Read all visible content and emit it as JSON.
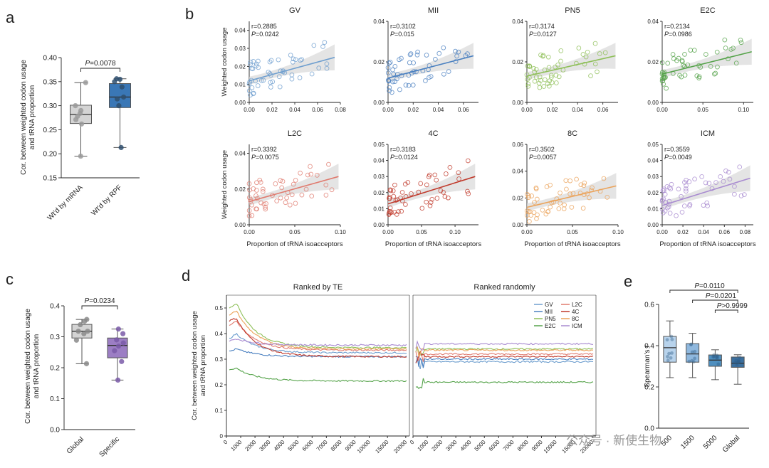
{
  "figure": {
    "panel_labels": [
      "a",
      "b",
      "c",
      "d",
      "e"
    ],
    "watermark": "公众号 · 新使生物"
  },
  "colors": {
    "GV": "#6f9fcf",
    "MII": "#4a80c0",
    "PN5": "#8ebf58",
    "E2C": "#55a34a",
    "L2C": "#e07a6e",
    "4C": "#c0392b",
    "8C": "#eba35a",
    "ICM": "#a88ad0",
    "mrna_box": "#d4d4d4",
    "rpf_box": "#3a77b6",
    "global_box": "#d4d4d4",
    "specific_box": "#9c7ec4"
  },
  "chart_data": [
    {
      "id": "a",
      "type": "box",
      "ylabel": "Cor. between weighted codon usage and tRNA proportion",
      "ylim": [
        0.15,
        0.4
      ],
      "yticks": [
        "0.15",
        "0.20",
        "0.25",
        "0.30",
        "0.35",
        "0.40"
      ],
      "categories": [
        "Wt'd by mRNA",
        "Wt'd by RPF"
      ],
      "boxes": [
        {
          "min": 0.195,
          "q1": 0.263,
          "median": 0.282,
          "q3": 0.301,
          "max": 0.348,
          "points": [
            0.195,
            0.262,
            0.271,
            0.278,
            0.284,
            0.29,
            0.3,
            0.348
          ]
        },
        {
          "min": 0.213,
          "q1": 0.296,
          "median": 0.318,
          "q3": 0.346,
          "max": 0.356,
          "points": [
            0.213,
            0.3,
            0.314,
            0.318,
            0.339,
            0.35,
            0.355,
            0.356
          ]
        }
      ],
      "annotation": "P=0.0078"
    },
    {
      "id": "b",
      "type": "scatter",
      "ylabel": "Weighted codon usage",
      "xlabel": "Proportion of tRNA isoacceptors",
      "subplots": [
        {
          "title": "GV",
          "r": "r=0.2885",
          "p": "P=0.0242",
          "color": "GV",
          "xlim": [
            0,
            0.08
          ],
          "ylim": [
            0,
            0.045
          ],
          "xticks": [
            "0.00",
            "0.02",
            "0.04",
            "0.06",
            "0.08"
          ],
          "yticks": [
            "0.00",
            "0.01",
            "0.02",
            "0.03",
            "0.04"
          ],
          "line": [
            0.0,
            0.012,
            0.075,
            0.025
          ]
        },
        {
          "title": "MII",
          "r": "r=0.3102",
          "p": "P=0.015",
          "color": "MII",
          "xlim": [
            0,
            0.072
          ],
          "ylim": [
            0,
            0.04
          ],
          "xticks": [
            "0.00",
            "0.02",
            "0.04",
            "0.06"
          ],
          "yticks": [
            "0.00",
            "0.02",
            "0.04"
          ],
          "line": [
            0.0,
            0.012,
            0.068,
            0.023
          ]
        },
        {
          "title": "PN5",
          "r": "r=0.3174",
          "p": "P=0.0127",
          "color": "PN5",
          "xlim": [
            0,
            0.072
          ],
          "ylim": [
            0,
            0.04
          ],
          "xticks": [
            "0.00",
            "0.02",
            "0.04",
            "0.06"
          ],
          "yticks": [
            "0.00",
            "0.02",
            "0.04"
          ],
          "line": [
            0.0,
            0.013,
            0.07,
            0.023
          ]
        },
        {
          "title": "E2C",
          "r": "r=0.2134",
          "p": "P=0.0986",
          "color": "E2C",
          "xlim": [
            0,
            0.112
          ],
          "ylim": [
            0,
            0.04
          ],
          "xticks": [
            "0.00",
            "0.05",
            "0.10"
          ],
          "yticks": [
            "0.00",
            "0.02",
            "0.04"
          ],
          "line": [
            0.0,
            0.014,
            0.11,
            0.025
          ]
        },
        {
          "title": "L2C",
          "r": "r=0.3392",
          "p": "P=0.0075",
          "color": "L2C",
          "xlim": [
            0,
            0.1
          ],
          "ylim": [
            0,
            0.045
          ],
          "xticks": [
            "0.00",
            "0.05",
            "0.10"
          ],
          "yticks": [
            "0.00",
            "0.02",
            "0.04"
          ],
          "line": [
            0.0,
            0.013,
            0.098,
            0.027
          ]
        },
        {
          "title": "4C",
          "r": "r=0.3183",
          "p": "P=0.0124",
          "color": "4C",
          "xlim": [
            0,
            0.135
          ],
          "ylim": [
            0,
            0.05
          ],
          "xticks": [
            "0.00",
            "0.05",
            "0.10"
          ],
          "yticks": [
            "0.00",
            "0.01",
            "0.02",
            "0.03",
            "0.04",
            "0.05"
          ],
          "line": [
            0.0,
            0.013,
            0.13,
            0.03
          ]
        },
        {
          "title": "8C",
          "r": "r=0.3502",
          "p": "P=0.0057",
          "color": "8C",
          "xlim": [
            0,
            0.1
          ],
          "ylim": [
            0,
            0.06
          ],
          "xticks": [
            "0.00",
            "0.05",
            "0.10"
          ],
          "yticks": [
            "0.00",
            "0.02",
            "0.04",
            "0.06"
          ],
          "line": [
            0.0,
            0.013,
            0.098,
            0.029
          ]
        },
        {
          "title": "ICM",
          "r": "r=0.3559",
          "p": "P=0.0049",
          "color": "ICM",
          "xlim": [
            0,
            0.088
          ],
          "ylim": [
            0,
            0.05
          ],
          "xticks": [
            "0.00",
            "0.02",
            "0.04",
            "0.06",
            "0.08"
          ],
          "yticks": [
            "0.00",
            "0.01",
            "0.02",
            "0.03",
            "0.04",
            "0.05"
          ],
          "line": [
            0.0,
            0.012,
            0.085,
            0.029
          ]
        }
      ]
    },
    {
      "id": "c",
      "type": "box",
      "ylabel": "Cor. between weighted codon usage and tRNA proportion",
      "ylim": [
        0.0,
        0.4
      ],
      "yticks": [
        "0.0",
        "0.1",
        "0.2",
        "0.3",
        "0.4"
      ],
      "categories": [
        "Global",
        "Specific"
      ],
      "boxes": [
        {
          "min": 0.213,
          "q1": 0.296,
          "median": 0.318,
          "q3": 0.34,
          "max": 0.356,
          "points": [
            0.213,
            0.289,
            0.31,
            0.318,
            0.318,
            0.339,
            0.35,
            0.356
          ]
        },
        {
          "min": 0.16,
          "q1": 0.232,
          "median": 0.272,
          "q3": 0.296,
          "max": 0.325,
          "points": [
            0.16,
            0.22,
            0.255,
            0.27,
            0.28,
            0.29,
            0.31,
            0.325
          ]
        }
      ],
      "annotation": "P=0.0234"
    },
    {
      "id": "d",
      "type": "line",
      "ylabel": "Cor. between weighted codon usage and tRNA proportion",
      "ylim": [
        0,
        0.55
      ],
      "yticks": [
        "0",
        "0.1",
        "0.2",
        "0.3",
        "0.4",
        "0.5"
      ],
      "xticks": [
        "0",
        "1000",
        "2000",
        "3000",
        "4000",
        "5000",
        "6000",
        "7000",
        "8000",
        "9000",
        "10000",
        "15000",
        "20000"
      ],
      "panels": [
        "Ranked by TE",
        "Ranked randomly"
      ],
      "legend": [
        "GV",
        "MII",
        "PN5",
        "E2C",
        "L2C",
        "4C",
        "8C",
        "ICM"
      ],
      "series_by_te": [
        {
          "name": "GV",
          "start": 0.38,
          "peak": 0.4,
          "end": 0.325
        },
        {
          "name": "MII",
          "start": 0.33,
          "peak": 0.34,
          "end": 0.31
        },
        {
          "name": "PN5",
          "start": 0.5,
          "peak": 0.52,
          "end": 0.345
        },
        {
          "name": "E2C",
          "start": 0.26,
          "peak": 0.265,
          "end": 0.215
        },
        {
          "name": "L2C",
          "start": 0.43,
          "peak": 0.45,
          "end": 0.335
        },
        {
          "name": "4C",
          "start": 0.45,
          "peak": 0.46,
          "end": 0.31
        },
        {
          "name": "8C",
          "start": 0.47,
          "peak": 0.49,
          "end": 0.34
        },
        {
          "name": "ICM",
          "start": 0.37,
          "peak": 0.38,
          "end": 0.355
        }
      ],
      "series_random": [
        {
          "name": "GV",
          "level": 0.29
        },
        {
          "name": "MII",
          "level": 0.3
        },
        {
          "name": "PN5",
          "level": 0.34
        },
        {
          "name": "E2C",
          "level": 0.21
        },
        {
          "name": "L2C",
          "level": 0.32
        },
        {
          "name": "4C",
          "level": 0.31
        },
        {
          "name": "8C",
          "level": 0.335
        },
        {
          "name": "ICM",
          "level": 0.36
        }
      ]
    },
    {
      "id": "e",
      "type": "box",
      "ylabel": "Spearman's r",
      "ylim": [
        0.0,
        0.6
      ],
      "yticks": [
        "0.0",
        "0.2",
        "0.4",
        "0.6"
      ],
      "categories": [
        "500",
        "1500",
        "5000",
        "Global"
      ],
      "boxes": [
        {
          "min": 0.245,
          "q1": 0.32,
          "median": 0.39,
          "q3": 0.445,
          "max": 0.52,
          "color": "#b8d3ec"
        },
        {
          "min": 0.245,
          "q1": 0.32,
          "median": 0.36,
          "q3": 0.41,
          "max": 0.46,
          "color": "#8fb8de"
        },
        {
          "min": 0.235,
          "q1": 0.3,
          "median": 0.33,
          "q3": 0.355,
          "max": 0.38,
          "color": "#4f8fbf"
        },
        {
          "min": 0.213,
          "q1": 0.295,
          "median": 0.315,
          "q3": 0.345,
          "max": 0.356,
          "color": "#3b6f9e"
        }
      ],
      "annotations": [
        "P=0.0110",
        "P=0.0201",
        "P>0.9999"
      ]
    }
  ]
}
